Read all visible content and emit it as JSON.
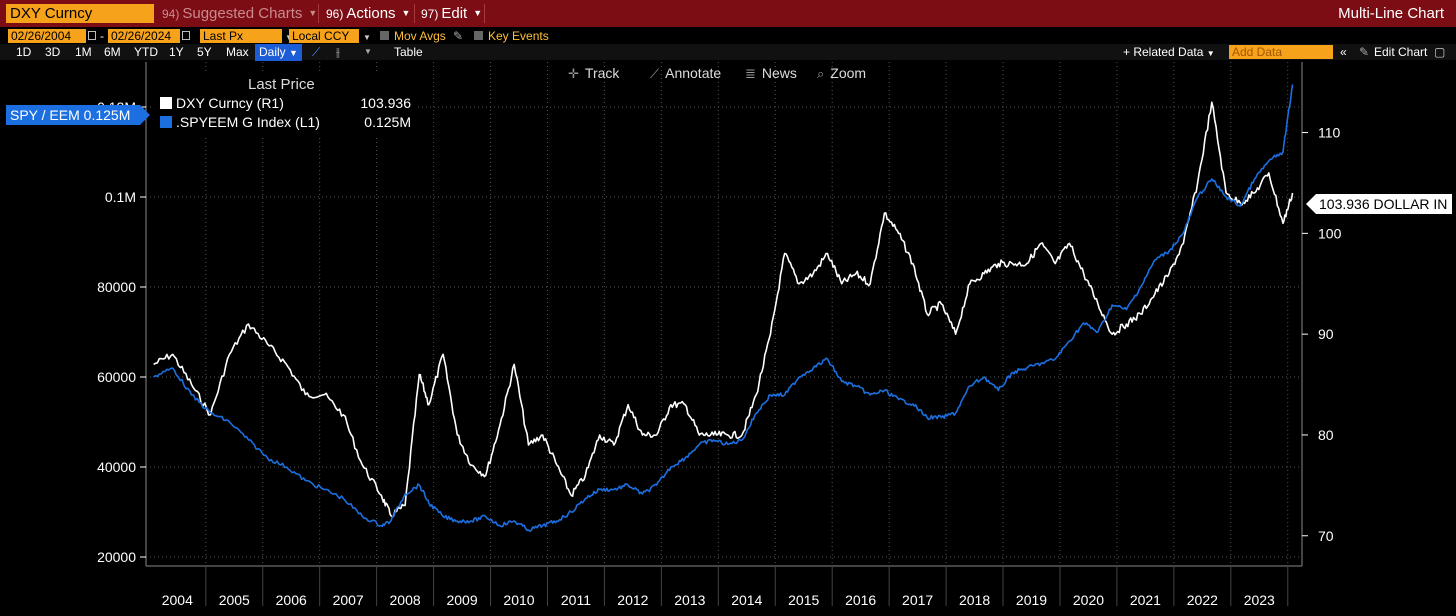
{
  "toolbar": {
    "ticker": "DXY Curncy",
    "suggested_code": "94)",
    "suggested_label": "Suggested Charts",
    "actions_code": "96)",
    "actions_label": "Actions",
    "edit_code": "97)",
    "edit_label": "Edit",
    "mode_title": "Multi-Line Chart"
  },
  "settings": {
    "start_date": "02/26/2004",
    "date_sep": "-",
    "end_date": "02/26/2024",
    "field": "Last Px",
    "currency": "Local CCY",
    "mov_avgs": "Mov Avgs",
    "key_events": "Key Events"
  },
  "range_bar": {
    "buttons": [
      "1D",
      "3D",
      "1M",
      "6M",
      "YTD",
      "1Y",
      "5Y",
      "Max"
    ],
    "period": "Daily",
    "table": "Table",
    "related_data": "+ Related Data",
    "add_data_placeholder": "Add Data",
    "edit_chart": "Edit Chart"
  },
  "chart_tools": {
    "track": "Track",
    "annotate": "Annotate",
    "news": "News",
    "zoom": "Zoom"
  },
  "legend": {
    "header": "Last Price",
    "rows": [
      {
        "label": "DXY Curncy  (R1)",
        "value": "103.936",
        "color": "#ffffff"
      },
      {
        "label": ".SPYEEM G Index  (L1)",
        "value": "0.125M",
        "color": "#1c6fe0"
      }
    ]
  },
  "axis_tags": {
    "left": "SPY / EEM 0.125M",
    "right": "103.936 DOLLAR IN"
  },
  "chart_data": {
    "type": "line",
    "x": [
      "2004-02",
      "2004-06",
      "2004-10",
      "2005-02",
      "2005-06",
      "2005-10",
      "2006-02",
      "2006-06",
      "2006-10",
      "2007-02",
      "2007-06",
      "2007-10",
      "2008-02",
      "2008-04",
      "2008-07",
      "2008-10",
      "2008-12",
      "2009-03",
      "2009-06",
      "2009-09",
      "2009-12",
      "2010-03",
      "2010-06",
      "2010-09",
      "2010-12",
      "2011-03",
      "2011-06",
      "2011-09",
      "2011-12",
      "2012-03",
      "2012-06",
      "2012-09",
      "2012-12",
      "2013-03",
      "2013-06",
      "2013-09",
      "2013-12",
      "2014-03",
      "2014-06",
      "2014-09",
      "2014-12",
      "2015-03",
      "2015-06",
      "2015-09",
      "2015-12",
      "2016-03",
      "2016-06",
      "2016-09",
      "2016-12",
      "2017-03",
      "2017-06",
      "2017-09",
      "2017-12",
      "2018-03",
      "2018-06",
      "2018-09",
      "2018-12",
      "2019-03",
      "2019-06",
      "2019-09",
      "2019-12",
      "2020-03",
      "2020-06",
      "2020-09",
      "2020-12",
      "2021-03",
      "2021-06",
      "2021-09",
      "2021-12",
      "2022-03",
      "2022-06",
      "2022-09",
      "2022-12",
      "2023-03",
      "2023-06",
      "2023-09",
      "2023-12",
      "2024-02"
    ],
    "series": [
      {
        "name": "DXY Curncy  (R1)",
        "axis": "right",
        "color": "#ffffff",
        "values": [
          87,
          88,
          85,
          82,
          88,
          91,
          89,
          87,
          84,
          84,
          82,
          77,
          74,
          72,
          73,
          86,
          83,
          88,
          80,
          77,
          76,
          81,
          87,
          79,
          80,
          77,
          74,
          76,
          80,
          79,
          83,
          80,
          80,
          83,
          83,
          80,
          80,
          80,
          80,
          84,
          90,
          98,
          95,
          96,
          98,
          95,
          96,
          95,
          102,
          100,
          97,
          92,
          93,
          90,
          95,
          96,
          97,
          97,
          97,
          99,
          97,
          99,
          96,
          93,
          90,
          91,
          92,
          94,
          96,
          99,
          105,
          113,
          104,
          103,
          104,
          106,
          101,
          104
        ],
        "color_hint": "white"
      },
      {
        "name": ".SPYEEM G Index  (L1)",
        "axis": "left",
        "color": "#1c6fe0",
        "values": [
          60000,
          62000,
          56000,
          52000,
          50000,
          46000,
          42000,
          40000,
          37000,
          35000,
          33000,
          29000,
          27000,
          28000,
          34000,
          36000,
          32000,
          29000,
          28000,
          28000,
          29000,
          27000,
          28000,
          26000,
          27000,
          28000,
          30000,
          33000,
          35000,
          35000,
          36000,
          34000,
          36000,
          40000,
          42000,
          45000,
          46000,
          45000,
          46000,
          52000,
          56000,
          56000,
          60000,
          62000,
          64000,
          59000,
          58000,
          56000,
          57000,
          55000,
          54000,
          51000,
          51000,
          52000,
          58000,
          60000,
          57000,
          61000,
          62000,
          63000,
          64000,
          68000,
          72000,
          70000,
          76000,
          75000,
          80000,
          86000,
          88000,
          92000,
          100000,
          104000,
          100000,
          98000,
          104000,
          108000,
          110000,
          125000
        ]
      }
    ],
    "x_tick_labels": [
      "2004",
      "2005",
      "2006",
      "2007",
      "2008",
      "2009",
      "2010",
      "2011",
      "2012",
      "2013",
      "2014",
      "2015",
      "2016",
      "2017",
      "2018",
      "2019",
      "2020",
      "2021",
      "2022",
      "2023"
    ],
    "left_axis": {
      "ticks": [
        20000,
        40000,
        60000,
        80000,
        100000,
        120000
      ],
      "tick_labels": [
        "20000",
        "40000",
        "60000",
        "80000",
        "0.1M",
        "0.12M"
      ],
      "range": [
        18000,
        130000
      ]
    },
    "right_axis": {
      "ticks": [
        70,
        80,
        90,
        100,
        110
      ],
      "tick_labels": [
        "70",
        "80",
        "90",
        "100",
        "110"
      ],
      "range": [
        67,
        117
      ]
    },
    "grid": true
  }
}
